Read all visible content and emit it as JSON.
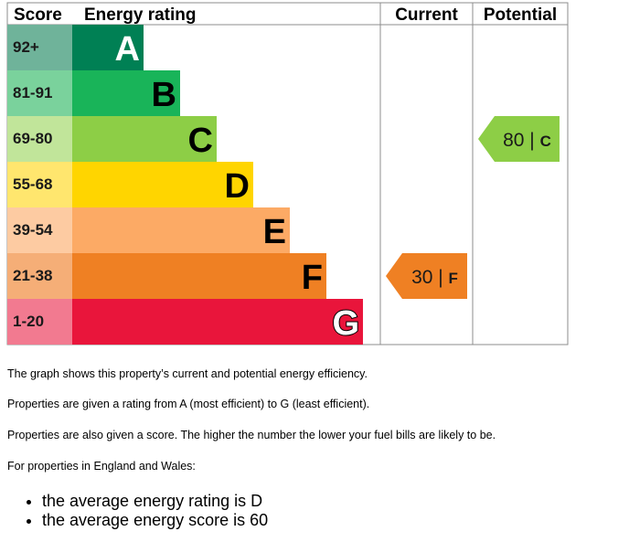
{
  "chart_data": {
    "type": "bar",
    "headers": {
      "score": "Score",
      "rating": "Energy rating",
      "current": "Current",
      "potential": "Potential"
    },
    "bands": [
      {
        "letter": "A",
        "range": "92+",
        "color": "#008054",
        "score_color": "#6fb39a"
      },
      {
        "letter": "B",
        "range": "81-91",
        "color": "#19b459",
        "score_color": "#7ad29c"
      },
      {
        "letter": "C",
        "range": "69-80",
        "color": "#8dce46",
        "score_color": "#c1e59a"
      },
      {
        "letter": "D",
        "range": "55-68",
        "color": "#ffd500",
        "score_color": "#ffe66e"
      },
      {
        "letter": "E",
        "range": "39-54",
        "color": "#fcaa65",
        "score_color": "#fdcba2"
      },
      {
        "letter": "F",
        "range": "21-38",
        "color": "#ef8023",
        "score_color": "#f5ae77"
      },
      {
        "letter": "G",
        "range": "1-20",
        "color": "#e9153b",
        "score_color": "#f27a90"
      }
    ],
    "current": {
      "score": "30",
      "letter": "F",
      "color": "#ef8023"
    },
    "potential": {
      "score": "80",
      "letter": "C",
      "color": "#8dce46"
    }
  },
  "text": {
    "p1": "The graph shows this property’s current and potential energy efficiency.",
    "p2": "Properties are given a rating from A (most efficient) to G (least efficient).",
    "p3": "Properties are also given a score. The higher the number the lower your fuel bills are likely to be.",
    "p4": "For properties in England and Wales:",
    "bullets": [
      "the average energy rating is D",
      "the average energy score is 60"
    ]
  }
}
